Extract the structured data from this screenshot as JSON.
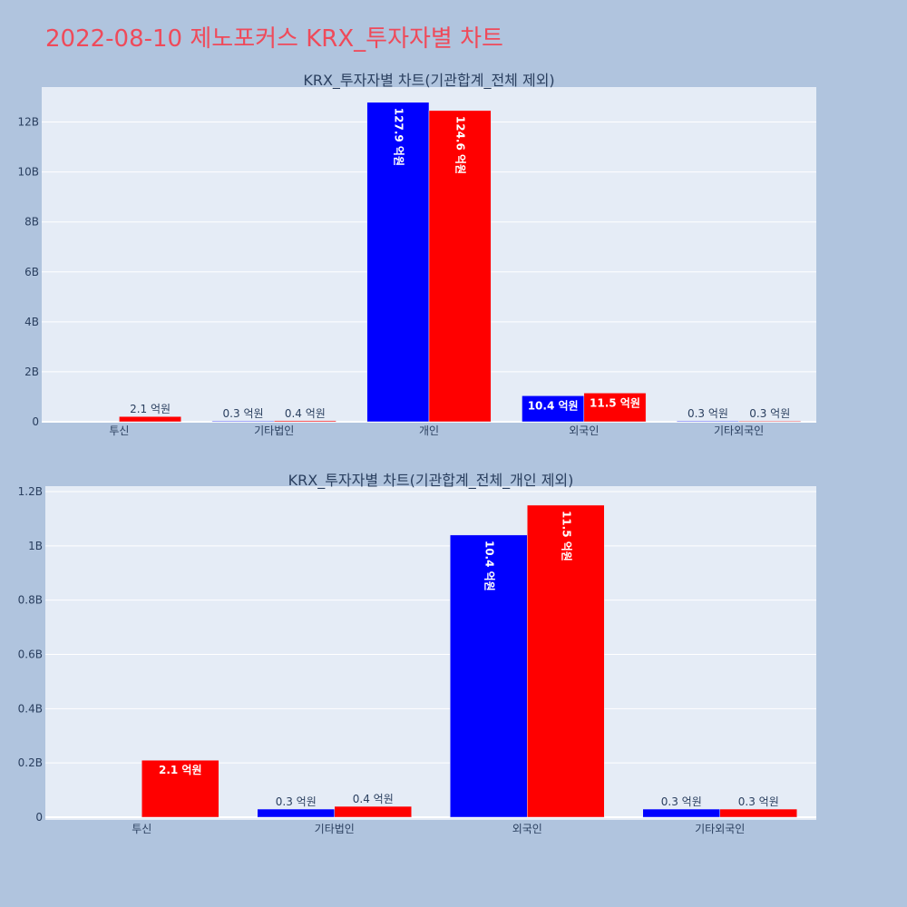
{
  "page_title": "2022-08-10 제노포커스 KRX_투자자별 차트",
  "colors": {
    "background": "#b0c4de",
    "plot_background": "#e5ecf6",
    "title": "#ef4a5a",
    "series_1": "#0000ff",
    "series_2": "#ff0000",
    "text": "#2a3f5f"
  },
  "chart_data": [
    {
      "type": "bar",
      "title": "KRX_투자자별 차트(기관합계_전체 제외)",
      "categories": [
        "투신",
        "기타법인",
        "개인",
        "외국인",
        "기타외국인"
      ],
      "ylim": [
        0,
        13400000000
      ],
      "ytick_values": [
        0,
        2000000000,
        4000000000,
        6000000000,
        8000000000,
        10000000000,
        12000000000
      ],
      "ytick_labels": [
        "0",
        "2B",
        "4B",
        "6B",
        "8B",
        "10B",
        "12B"
      ],
      "grid": true,
      "legend": "none",
      "series": [
        {
          "color": "#0000ff",
          "values": [
            0,
            30000000,
            12790000000,
            1040000000,
            30000000
          ],
          "labels": [
            "",
            "0.3 억원",
            "127.9 억원",
            "10.4 억원",
            "0.3 억원"
          ]
        },
        {
          "color": "#ff0000",
          "values": [
            210000000,
            40000000,
            12460000000,
            1150000000,
            30000000
          ],
          "labels": [
            "2.1 억원",
            "0.4 억원",
            "124.6 억원",
            "11.5 억원",
            "0.3 억원"
          ]
        }
      ]
    },
    {
      "type": "bar",
      "title": "KRX_투자자별 차트(기관합계_전체_개인 제외)",
      "categories": [
        "투신",
        "기타법인",
        "외국인",
        "기타외국인"
      ],
      "ylim": [
        -10000000,
        1220000000
      ],
      "ytick_values": [
        0,
        200000000,
        400000000,
        600000000,
        800000000,
        1000000000,
        1200000000
      ],
      "ytick_labels": [
        "0",
        "0.2B",
        "0.4B",
        "0.6B",
        "0.8B",
        "1B",
        "1.2B"
      ],
      "grid": true,
      "legend": "none",
      "series": [
        {
          "color": "#0000ff",
          "values": [
            0,
            30000000,
            1040000000,
            30000000
          ],
          "labels": [
            "",
            "0.3 억원",
            "10.4 억원",
            "0.3 억원"
          ]
        },
        {
          "color": "#ff0000",
          "values": [
            210000000,
            40000000,
            1150000000,
            30000000
          ],
          "labels": [
            "2.1 억원",
            "0.4 억원",
            "11.5 억원",
            "0.3 억원"
          ]
        }
      ]
    }
  ]
}
